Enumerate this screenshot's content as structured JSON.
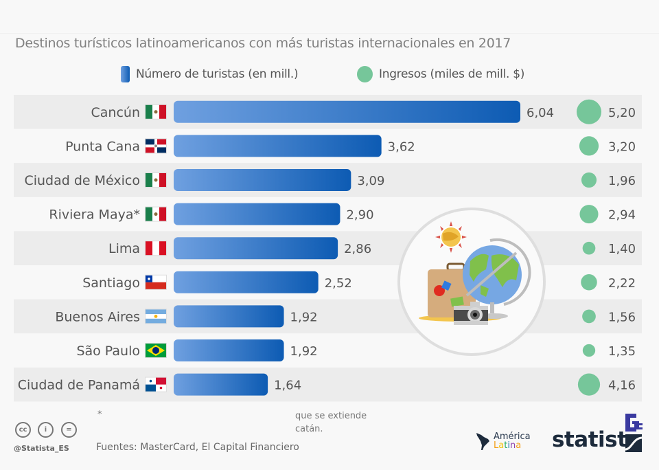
{
  "title": "Destinos turísticos latinoamericanos con más turistas internacionales en 2017",
  "legend": {
    "bars": "Número de turistas (en mill.)",
    "dots": "Ingresos (miles de mill. $)"
  },
  "colors": {
    "bar_start": "#6fa0e0",
    "bar_end": "#0d5bb3",
    "dot": "#76c69a",
    "row_alt": "#ececec"
  },
  "chart_data": {
    "type": "bar",
    "title": "Destinos turísticos latinoamericanos con más turistas internacionales en 2017",
    "categories": [
      "Cancún",
      "Punta Cana",
      "Ciudad de México",
      "Riviera Maya*",
      "Lima",
      "Santiago",
      "Buenos Aires",
      "São Paulo",
      "Ciudad de Panamá"
    ],
    "flags": [
      "mexico-flag",
      "dominican-republic-flag",
      "mexico-flag",
      "mexico-flag",
      "peru-flag",
      "chile-flag",
      "argentina-flag",
      "brazil-flag",
      "panama-flag"
    ],
    "series": [
      {
        "name": "Número de turistas (en mill.)",
        "values": [
          6.04,
          3.62,
          3.09,
          2.9,
          2.86,
          2.52,
          1.92,
          1.92,
          1.64
        ],
        "labels": [
          "6,04",
          "3,62",
          "3,09",
          "2,90",
          "2,86",
          "2,52",
          "1,92",
          "1,92",
          "1,64"
        ]
      },
      {
        "name": "Ingresos (miles de mill. $)",
        "values": [
          5.2,
          3.2,
          1.96,
          2.94,
          1.4,
          2.22,
          1.56,
          1.35,
          4.16
        ],
        "labels": [
          "5,20",
          "3,20",
          "1,96",
          "2,94",
          "1,40",
          "2,22",
          "1,56",
          "1,35",
          "4,16"
        ]
      }
    ],
    "xlabel": "",
    "ylabel": "",
    "grid": false,
    "legend_position": "top-center"
  },
  "footer": {
    "footnote_line1_start": "*",
    "footnote_line1_end": "que se extiende",
    "footnote_line2_end": "catán.",
    "source": "Fuentes: MasterCard, El Capital Financiero",
    "handle": "@Statista_ES",
    "cc_icons": [
      "cc",
      "i",
      "="
    ],
    "america_latina_top": "América",
    "america_latina_bottom": [
      "L",
      "a",
      "t",
      "i",
      "n",
      "a"
    ],
    "brand": "statista"
  }
}
